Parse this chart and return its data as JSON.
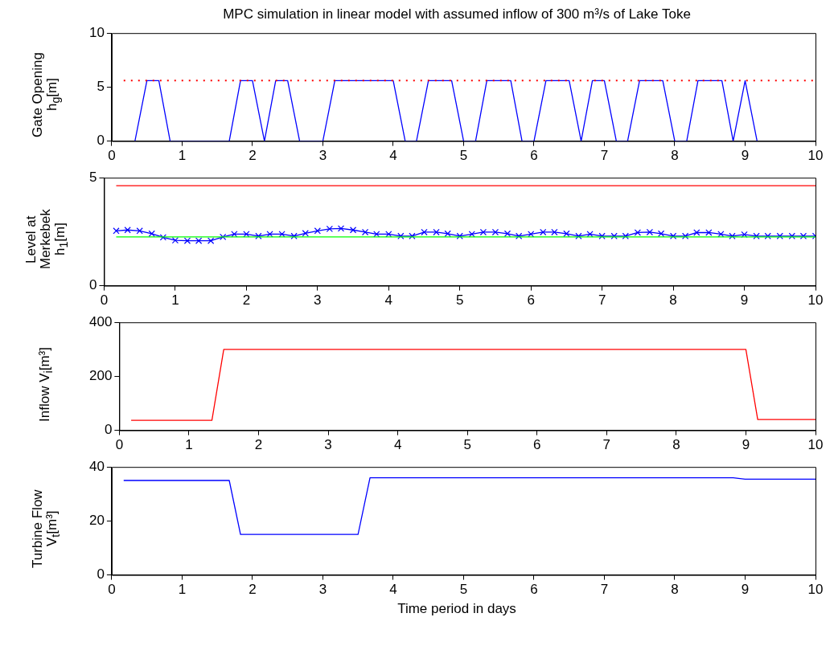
{
  "chart_data": [
    {
      "type": "line",
      "title": "MPC simulation in linear model with assumed inflow of 300 m³/s of Lake Toke",
      "ylabel": "Gate Opening h$_{g}$[m]",
      "xlim": [
        0,
        10
      ],
      "xticks": [
        0,
        1,
        2,
        3,
        4,
        5,
        6,
        7,
        8,
        9,
        10
      ],
      "ylim": [
        0,
        10
      ],
      "yticks": [
        0,
        5,
        10
      ],
      "series": [
        {
          "color": "#ff0000",
          "line_style": "dotted",
          "marker": "none",
          "x": [
            0.17,
            10
          ],
          "values": [
            5.6,
            5.6
          ]
        },
        {
          "color": "#0000ff",
          "line_style": "solid",
          "marker": "none",
          "x": [
            0.33,
            0.5,
            0.67,
            0.83,
            1.67,
            1.83,
            2.0,
            2.17,
            2.33,
            2.5,
            2.67,
            3.0,
            3.17,
            4.0,
            4.17,
            4.33,
            4.5,
            4.83,
            5.0,
            5.17,
            5.33,
            5.67,
            5.83,
            6.0,
            6.17,
            6.5,
            6.67,
            6.83,
            7.0,
            7.17,
            7.33,
            7.5,
            7.83,
            8.0,
            8.17,
            8.33,
            8.67,
            8.83,
            9.0,
            9.17
          ],
          "values": [
            0,
            5.6,
            5.6,
            0,
            0,
            5.6,
            5.6,
            0,
            5.6,
            5.6,
            0,
            0,
            5.6,
            5.6,
            0,
            0,
            5.6,
            5.6,
            0,
            0,
            5.6,
            5.6,
            0,
            0,
            5.6,
            5.6,
            0,
            5.6,
            5.6,
            0,
            0,
            5.6,
            5.6,
            0,
            0,
            5.6,
            5.6,
            0,
            5.6,
            0
          ]
        }
      ]
    },
    {
      "type": "line",
      "ylabel": "Level at Merkebek h$_{1}$[m]",
      "xlim": [
        0,
        10
      ],
      "xticks": [
        0,
        1,
        2,
        3,
        4,
        5,
        6,
        7,
        8,
        9,
        10
      ],
      "ylim": [
        0,
        5
      ],
      "yticks": [
        0,
        5
      ],
      "series": [
        {
          "color": "#ff0000",
          "line_style": "solid",
          "marker": "none",
          "x": [
            0.17,
            10
          ],
          "values": [
            4.63,
            4.63
          ]
        },
        {
          "color": "#00ff00",
          "line_style": "solid",
          "marker": "none",
          "x": [
            0.17,
            10
          ],
          "values": [
            2.26,
            2.26
          ]
        },
        {
          "color": "#0000ff",
          "line_style": "solid",
          "marker": "cross",
          "x": [
            0.17,
            0.33,
            0.5,
            0.67,
            0.83,
            1.0,
            1.17,
            1.33,
            1.5,
            1.67,
            1.83,
            2.0,
            2.17,
            2.33,
            2.5,
            2.67,
            2.83,
            3.0,
            3.17,
            3.33,
            3.5,
            3.67,
            3.83,
            4.0,
            4.17,
            4.33,
            4.5,
            4.67,
            4.83,
            5.0,
            5.17,
            5.33,
            5.5,
            5.67,
            5.83,
            6.0,
            6.17,
            6.33,
            6.5,
            6.67,
            6.83,
            7.0,
            7.17,
            7.33,
            7.5,
            7.67,
            7.83,
            8.0,
            8.17,
            8.33,
            8.5,
            8.67,
            8.83,
            9.0,
            9.17,
            9.33,
            9.5,
            9.67,
            9.83,
            10.0
          ],
          "values": [
            2.54,
            2.58,
            2.54,
            2.41,
            2.24,
            2.1,
            2.08,
            2.08,
            2.08,
            2.26,
            2.39,
            2.39,
            2.3,
            2.39,
            2.39,
            2.3,
            2.43,
            2.54,
            2.63,
            2.65,
            2.58,
            2.48,
            2.39,
            2.39,
            2.3,
            2.3,
            2.48,
            2.48,
            2.41,
            2.3,
            2.39,
            2.48,
            2.48,
            2.41,
            2.3,
            2.39,
            2.48,
            2.48,
            2.41,
            2.3,
            2.39,
            2.3,
            2.3,
            2.3,
            2.46,
            2.48,
            2.41,
            2.3,
            2.3,
            2.46,
            2.46,
            2.39,
            2.3,
            2.37,
            2.3,
            2.3,
            2.3,
            2.3,
            2.3,
            2.3
          ]
        }
      ]
    },
    {
      "type": "line",
      "ylabel": "Inflow V$_{i}$[m³]",
      "xlim": [
        0,
        10
      ],
      "xticks": [
        0,
        1,
        2,
        3,
        4,
        5,
        6,
        7,
        8,
        9,
        10
      ],
      "ylim": [
        0,
        400
      ],
      "yticks": [
        0,
        200,
        400
      ],
      "series": [
        {
          "color": "#ff0000",
          "line_style": "solid",
          "marker": "none",
          "x": [
            0.17,
            1.33,
            1.5,
            9.0,
            9.17,
            10
          ],
          "values": [
            37,
            37,
            300,
            300,
            40,
            40
          ]
        }
      ]
    },
    {
      "type": "line",
      "ylabel": "Turbine Flow V$_{t}$[m³]",
      "xlabel": "Time period in days",
      "xlim": [
        0,
        10
      ],
      "xticks": [
        0,
        1,
        2,
        3,
        4,
        5,
        6,
        7,
        8,
        9,
        10
      ],
      "ylim": [
        0,
        40
      ],
      "yticks": [
        0,
        20,
        40
      ],
      "series": [
        {
          "color": "#0000ff",
          "line_style": "solid",
          "marker": "none",
          "x": [
            0.17,
            1.67,
            1.83,
            3.5,
            3.67,
            8.83,
            9.0,
            10
          ],
          "values": [
            35,
            35,
            15,
            15,
            36,
            36,
            35.5,
            35.5
          ]
        }
      ]
    }
  ]
}
